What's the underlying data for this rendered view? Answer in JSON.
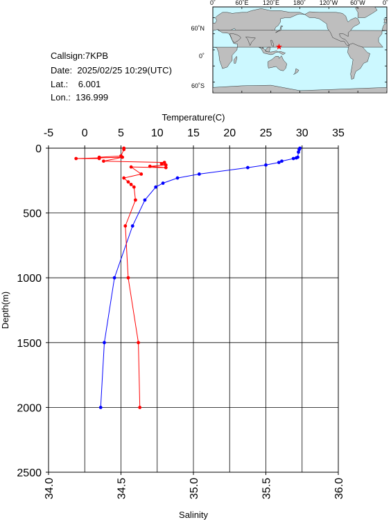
{
  "station": {
    "callsign_label": "Callsign:",
    "callsign": "7KPB",
    "date_label": "Date:",
    "date": "2025/02/25 10:29(UTC)",
    "lat_label": "Lat.:",
    "lat": "6.001",
    "lon_label": "Lon.:",
    "lon": "136.999"
  },
  "map": {
    "lon_labels": [
      "0˚",
      "60˚E",
      "120˚E",
      "180˚",
      "120˚W",
      "60˚W",
      "0˚"
    ],
    "lat_labels": [
      "60˚N",
      "0˚",
      "60˚S"
    ],
    "station_marker_color": "#ff0000",
    "ocean_color": "#ccf8ff",
    "land_color": "#bebebe",
    "marker_lon": 136.999,
    "marker_lat": 6.001
  },
  "chart_data": {
    "type": "line",
    "ylabel": "Depth(m)",
    "xlabel_top": "Temperature(C)",
    "xlabel_bottom": "Salinity",
    "ylim": [
      0,
      2500
    ],
    "y_reversed": true,
    "y_ticks": [
      "0",
      "500",
      "1000",
      "1500",
      "2000",
      "2500"
    ],
    "temperature_lim": [
      -5,
      35
    ],
    "temperature_ticks": [
      "-5",
      "0",
      "5",
      "10",
      "15",
      "20",
      "25",
      "30",
      "35"
    ],
    "salinity_lim": [
      34.0,
      36.0
    ],
    "salinity_ticks": [
      "34.0",
      "34.5",
      "35.0",
      "35.5",
      "36.0"
    ],
    "grid": true,
    "series": [
      {
        "axis": "temperature",
        "color": "#0000ff",
        "points": [
          [
            29.7,
            0
          ],
          [
            29.6,
            10
          ],
          [
            29.5,
            30
          ],
          [
            29.4,
            70
          ],
          [
            29.2,
            75
          ],
          [
            28.8,
            80
          ],
          [
            27.2,
            100
          ],
          [
            26.8,
            110
          ],
          [
            25.0,
            130
          ],
          [
            22.5,
            150
          ],
          [
            15.8,
            200
          ],
          [
            12.8,
            230
          ],
          [
            10.8,
            270
          ],
          [
            9.8,
            300
          ],
          [
            8.3,
            400
          ],
          [
            6.6,
            600
          ],
          [
            4.1,
            1000
          ],
          [
            2.7,
            1500
          ],
          [
            2.2,
            2000
          ]
        ]
      },
      {
        "axis": "salinity",
        "color": "#ff0000",
        "points": [
          [
            34.52,
            0
          ],
          [
            34.52,
            10
          ],
          [
            34.5,
            60
          ],
          [
            34.35,
            70
          ],
          [
            34.35,
            80
          ],
          [
            34.19,
            80
          ],
          [
            34.35,
            75
          ],
          [
            34.51,
            70
          ],
          [
            34.38,
            100
          ],
          [
            34.8,
            110
          ],
          [
            34.78,
            120
          ],
          [
            34.81,
            130
          ],
          [
            34.7,
            140
          ],
          [
            34.81,
            150
          ],
          [
            34.57,
            145
          ],
          [
            34.64,
            200
          ],
          [
            34.52,
            230
          ],
          [
            34.55,
            260
          ],
          [
            34.57,
            280
          ],
          [
            34.59,
            300
          ],
          [
            34.6,
            400
          ],
          [
            34.53,
            600
          ],
          [
            34.55,
            1000
          ],
          [
            34.62,
            1500
          ],
          [
            34.63,
            2000
          ]
        ]
      }
    ]
  }
}
